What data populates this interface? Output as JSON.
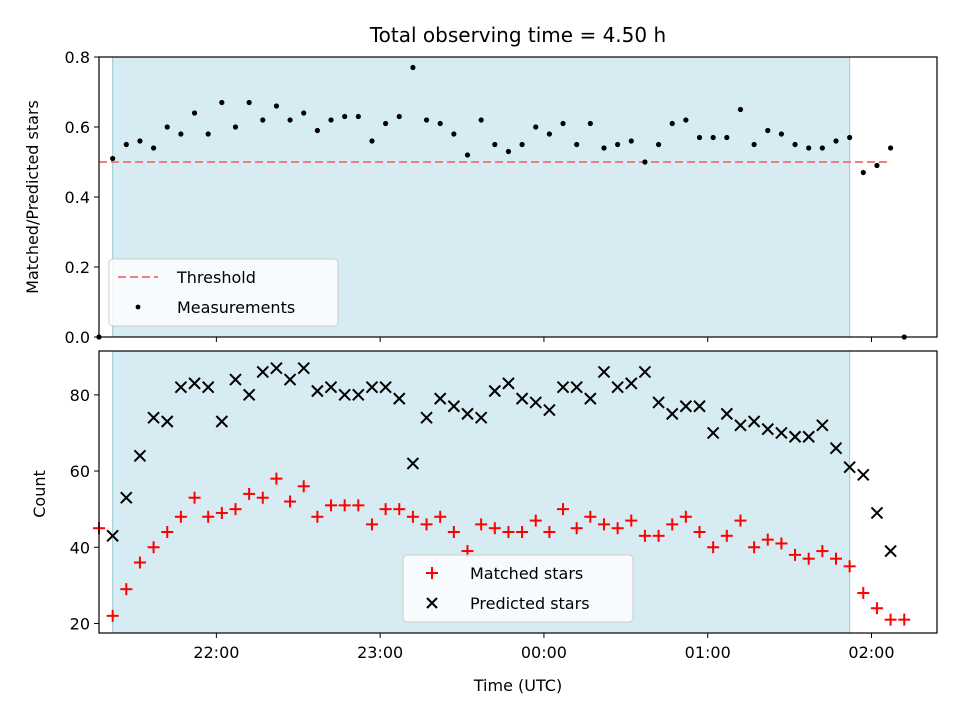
{
  "chart_data": [
    {
      "type": "scatter",
      "title": "Total observing time = 4.50 h",
      "xlabel": "",
      "ylabel": "Matched/Predicted stars",
      "ylim": [
        0,
        0.8
      ],
      "yticks": [
        "0.0",
        "0.2",
        "0.4",
        "0.6",
        "0.8"
      ],
      "xlim": [
        "21:17",
        "02:24"
      ],
      "shaded_span": [
        "21:22",
        "01:52"
      ],
      "threshold": {
        "name": "Threshold",
        "value": 0.5,
        "x": [
          "21:17",
          "02:07"
        ],
        "color": "#f08080"
      },
      "series": [
        {
          "name": "Measurements",
          "color": "#000000",
          "points": [
            [
              "21:17",
              0.0
            ],
            [
              "21:22",
              0.51
            ],
            [
              "21:27",
              0.55
            ],
            [
              "21:32",
              0.56
            ],
            [
              "21:37",
              0.54
            ],
            [
              "21:42",
              0.6
            ],
            [
              "21:47",
              0.58
            ],
            [
              "21:52",
              0.64
            ],
            [
              "21:57",
              0.58
            ],
            [
              "22:02",
              0.67
            ],
            [
              "22:07",
              0.6
            ],
            [
              "22:12",
              0.67
            ],
            [
              "22:17",
              0.62
            ],
            [
              "22:22",
              0.66
            ],
            [
              "22:27",
              0.62
            ],
            [
              "22:32",
              0.64
            ],
            [
              "22:37",
              0.59
            ],
            [
              "22:42",
              0.62
            ],
            [
              "22:47",
              0.63
            ],
            [
              "22:52",
              0.63
            ],
            [
              "22:57",
              0.56
            ],
            [
              "23:02",
              0.61
            ],
            [
              "23:07",
              0.63
            ],
            [
              "23:12",
              0.77
            ],
            [
              "23:17",
              0.62
            ],
            [
              "23:22",
              0.61
            ],
            [
              "23:27",
              0.58
            ],
            [
              "23:32",
              0.52
            ],
            [
              "23:37",
              0.62
            ],
            [
              "23:42",
              0.55
            ],
            [
              "23:47",
              0.53
            ],
            [
              "23:52",
              0.55
            ],
            [
              "23:57",
              0.6
            ],
            [
              "00:02",
              0.58
            ],
            [
              "00:07",
              0.61
            ],
            [
              "00:12",
              0.55
            ],
            [
              "00:17",
              0.61
            ],
            [
              "00:22",
              0.54
            ],
            [
              "00:27",
              0.55
            ],
            [
              "00:32",
              0.56
            ],
            [
              "00:37",
              0.5
            ],
            [
              "00:42",
              0.55
            ],
            [
              "00:47",
              0.61
            ],
            [
              "00:52",
              0.62
            ],
            [
              "00:57",
              0.57
            ],
            [
              "01:02",
              0.57
            ],
            [
              "01:07",
              0.57
            ],
            [
              "01:12",
              0.65
            ],
            [
              "01:17",
              0.55
            ],
            [
              "01:22",
              0.59
            ],
            [
              "01:27",
              0.58
            ],
            [
              "01:32",
              0.55
            ],
            [
              "01:37",
              0.54
            ],
            [
              "01:42",
              0.54
            ],
            [
              "01:47",
              0.56
            ],
            [
              "01:52",
              0.57
            ],
            [
              "01:57",
              0.47
            ],
            [
              "02:02",
              0.49
            ],
            [
              "02:07",
              0.54
            ],
            [
              "02:12",
              0.0
            ]
          ]
        }
      ],
      "legend": {
        "position": "lower left",
        "entries": [
          "Threshold",
          "Measurements"
        ]
      }
    },
    {
      "type": "scatter",
      "title": "",
      "xlabel": "Time (UTC)",
      "ylabel": "Count",
      "ylim": [
        17.5,
        91.5
      ],
      "yticks": [
        "20",
        "40",
        "60",
        "80"
      ],
      "xlim": [
        "21:17",
        "02:24"
      ],
      "xticks": [
        "22:00",
        "23:00",
        "00:00",
        "01:00",
        "02:00"
      ],
      "shaded_span": [
        "21:22",
        "01:52"
      ],
      "series": [
        {
          "name": "Matched stars",
          "marker": "+",
          "color": "#ff0000",
          "points": [
            [
              "21:17",
              45
            ],
            [
              "21:22",
              22
            ],
            [
              "21:27",
              29
            ],
            [
              "21:32",
              36
            ],
            [
              "21:37",
              40
            ],
            [
              "21:42",
              44
            ],
            [
              "21:47",
              48
            ],
            [
              "21:52",
              53
            ],
            [
              "21:57",
              48
            ],
            [
              "22:02",
              49
            ],
            [
              "22:07",
              50
            ],
            [
              "22:12",
              54
            ],
            [
              "22:17",
              53
            ],
            [
              "22:22",
              58
            ],
            [
              "22:27",
              52
            ],
            [
              "22:32",
              56
            ],
            [
              "22:37",
              48
            ],
            [
              "22:42",
              51
            ],
            [
              "22:47",
              51
            ],
            [
              "22:52",
              51
            ],
            [
              "22:57",
              46
            ],
            [
              "23:02",
              50
            ],
            [
              "23:07",
              50
            ],
            [
              "23:12",
              48
            ],
            [
              "23:17",
              46
            ],
            [
              "23:22",
              48
            ],
            [
              "23:27",
              44
            ],
            [
              "23:32",
              39
            ],
            [
              "23:37",
              46
            ],
            [
              "23:42",
              45
            ],
            [
              "23:47",
              44
            ],
            [
              "23:52",
              44
            ],
            [
              "23:57",
              47
            ],
            [
              "00:02",
              44
            ],
            [
              "00:07",
              50
            ],
            [
              "00:12",
              45
            ],
            [
              "00:17",
              48
            ],
            [
              "00:22",
              46
            ],
            [
              "00:27",
              45
            ],
            [
              "00:32",
              47
            ],
            [
              "00:37",
              43
            ],
            [
              "00:42",
              43
            ],
            [
              "00:47",
              46
            ],
            [
              "00:52",
              48
            ],
            [
              "00:57",
              44
            ],
            [
              "01:02",
              40
            ],
            [
              "01:07",
              43
            ],
            [
              "01:12",
              47
            ],
            [
              "01:17",
              40
            ],
            [
              "01:22",
              42
            ],
            [
              "01:27",
              41
            ],
            [
              "01:32",
              38
            ],
            [
              "01:37",
              37
            ],
            [
              "01:42",
              39
            ],
            [
              "01:47",
              37
            ],
            [
              "01:52",
              35
            ],
            [
              "01:57",
              28
            ],
            [
              "02:02",
              24
            ],
            [
              "02:07",
              21
            ],
            [
              "02:12",
              21
            ]
          ]
        },
        {
          "name": "Predicted stars",
          "marker": "x",
          "color": "#000000",
          "points": [
            [
              "21:22",
              43
            ],
            [
              "21:27",
              53
            ],
            [
              "21:32",
              64
            ],
            [
              "21:37",
              74
            ],
            [
              "21:42",
              73
            ],
            [
              "21:47",
              82
            ],
            [
              "21:52",
              83
            ],
            [
              "21:57",
              82
            ],
            [
              "22:02",
              73
            ],
            [
              "22:07",
              84
            ],
            [
              "22:12",
              80
            ],
            [
              "22:17",
              86
            ],
            [
              "22:22",
              87
            ],
            [
              "22:27",
              84
            ],
            [
              "22:32",
              87
            ],
            [
              "22:37",
              81
            ],
            [
              "22:42",
              82
            ],
            [
              "22:47",
              80
            ],
            [
              "22:52",
              80
            ],
            [
              "22:57",
              82
            ],
            [
              "23:02",
              82
            ],
            [
              "23:07",
              79
            ],
            [
              "23:12",
              62
            ],
            [
              "23:17",
              74
            ],
            [
              "23:22",
              79
            ],
            [
              "23:27",
              77
            ],
            [
              "23:32",
              75
            ],
            [
              "23:37",
              74
            ],
            [
              "23:42",
              81
            ],
            [
              "23:47",
              83
            ],
            [
              "23:52",
              79
            ],
            [
              "23:57",
              78
            ],
            [
              "00:02",
              76
            ],
            [
              "00:07",
              82
            ],
            [
              "00:12",
              82
            ],
            [
              "00:17",
              79
            ],
            [
              "00:22",
              86
            ],
            [
              "00:27",
              82
            ],
            [
              "00:32",
              83
            ],
            [
              "00:37",
              86
            ],
            [
              "00:42",
              78
            ],
            [
              "00:47",
              75
            ],
            [
              "00:52",
              77
            ],
            [
              "00:57",
              77
            ],
            [
              "01:02",
              70
            ],
            [
              "01:07",
              75
            ],
            [
              "01:12",
              72
            ],
            [
              "01:17",
              73
            ],
            [
              "01:22",
              71
            ],
            [
              "01:27",
              70
            ],
            [
              "01:32",
              69
            ],
            [
              "01:37",
              69
            ],
            [
              "01:42",
              72
            ],
            [
              "01:47",
              66
            ],
            [
              "01:52",
              61
            ],
            [
              "01:57",
              59
            ],
            [
              "02:02",
              49
            ],
            [
              "02:07",
              39
            ]
          ]
        }
      ],
      "legend": {
        "position": "lower center",
        "entries": [
          "Matched stars",
          "Predicted stars"
        ]
      }
    }
  ],
  "colors": {
    "shade": "#add8e6",
    "threshold": "#f08080",
    "matched": "#ff0000",
    "predicted": "#000000"
  }
}
